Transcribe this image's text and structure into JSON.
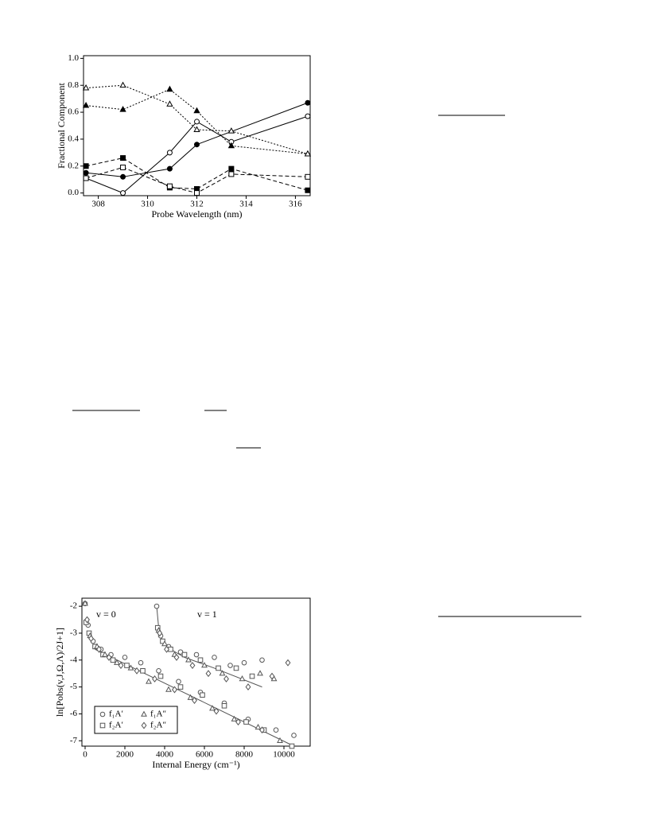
{
  "chart_data": [
    {
      "type": "line",
      "xlabel": "Probe Wavelength (nm)",
      "ylabel": "Fractional Component",
      "x": [
        307.5,
        309.0,
        310.9,
        312.0,
        313.4,
        316.5
      ],
      "xlim": [
        307.4,
        316.6
      ],
      "xticks": [
        308,
        310,
        312,
        314,
        316
      ],
      "ylim": [
        -0.02,
        1.02
      ],
      "yticks": [
        {
          "value": 0,
          "label": "0.0"
        },
        0.2,
        0.4,
        0.6,
        0.8,
        {
          "value": 1,
          "label": "1.0"
        }
      ],
      "series": [
        {
          "marker": "circle",
          "filled": true,
          "linestyle": "solid",
          "color": "#000000",
          "values": [
            0.15,
            0.12,
            0.18,
            0.36,
            null,
            0.67
          ]
        },
        {
          "marker": "circle",
          "filled": false,
          "linestyle": "solid",
          "color": "#000000",
          "values": [
            0.11,
            0.0,
            0.3,
            0.53,
            0.38,
            0.57
          ]
        },
        {
          "marker": "triangle",
          "filled": true,
          "linestyle": "dotted",
          "color": "#000000",
          "values": [
            0.65,
            0.62,
            0.77,
            0.61,
            0.35,
            0.29
          ]
        },
        {
          "marker": "triangle",
          "filled": false,
          "linestyle": "dotted",
          "color": "#000000",
          "values": [
            0.78,
            0.8,
            0.66,
            0.47,
            0.46,
            0.29
          ]
        },
        {
          "marker": "square",
          "filled": true,
          "linestyle": "dashed",
          "color": "#000000",
          "values": [
            0.2,
            0.26,
            0.04,
            0.03,
            0.18,
            0.02
          ]
        },
        {
          "marker": "square",
          "filled": false,
          "linestyle": "dashed",
          "color": "#000000",
          "values": [
            0.11,
            0.19,
            0.05,
            0.0,
            0.14,
            0.12
          ]
        }
      ]
    },
    {
      "type": "scatter",
      "xlabel": "Internal Energy (cm⁻¹)",
      "ylabel": "ln[Pobs(v,J,Ω,Λ)/2J+1]",
      "annotations": [
        "v = 0",
        "v = 1"
      ],
      "xlim": [
        -160,
        11320
      ],
      "xticks": [
        0,
        2000,
        4000,
        6000,
        8000,
        10000
      ],
      "ylim": [
        -7.2,
        -1.7
      ],
      "yticks": [
        -2,
        -3,
        -4,
        -5,
        -6,
        -7
      ],
      "legend": "lower-left",
      "series": [
        {
          "name": "f₁A′",
          "marker": "circle",
          "color": "#555555",
          "x": [
            0,
            150,
            400,
            800,
            1300,
            2000,
            2800,
            3700,
            4700,
            5800,
            7000,
            8200,
            9600,
            10500,
            3600,
            3800,
            4200,
            4800,
            5600,
            6500,
            7300,
            8000,
            8900
          ],
          "y": [
            -1.9,
            -2.7,
            -3.3,
            -3.6,
            -3.8,
            -3.9,
            -4.1,
            -4.4,
            -4.8,
            -5.2,
            -5.6,
            -6.2,
            -6.6,
            -6.8,
            -2.0,
            -3.1,
            -3.5,
            -3.7,
            -3.8,
            -3.9,
            -4.2,
            -4.1,
            -4.0
          ]
        },
        {
          "name": "f₂A′",
          "marker": "square",
          "color": "#555555",
          "x": [
            50,
            200,
            500,
            900,
            1400,
            2100,
            2900,
            3800,
            4800,
            5900,
            7000,
            8100,
            9000,
            10400,
            3650,
            3900,
            4300,
            5000,
            5800,
            6700,
            7600,
            8400
          ],
          "y": [
            -2.6,
            -3.0,
            -3.5,
            -3.8,
            -4.0,
            -4.2,
            -4.4,
            -4.6,
            -5.0,
            -5.3,
            -5.7,
            -6.3,
            -6.6,
            -7.2,
            -2.8,
            -3.3,
            -3.6,
            -3.8,
            -4.0,
            -4.3,
            -4.3,
            -4.6
          ]
        },
        {
          "name": "f₁A″",
          "marker": "triangle",
          "color": "#555555",
          "x": [
            0,
            250,
            600,
            1000,
            1600,
            2300,
            3200,
            4200,
            5300,
            6400,
            7500,
            8700,
            9800,
            3700,
            4000,
            4500,
            5200,
            6000,
            6900,
            7900,
            8800,
            9500
          ],
          "y": [
            -1.9,
            -3.1,
            -3.5,
            -3.8,
            -4.1,
            -4.3,
            -4.8,
            -5.1,
            -5.4,
            -5.8,
            -6.2,
            -6.5,
            -7.0,
            -2.9,
            -3.4,
            -3.8,
            -4.0,
            -4.2,
            -4.5,
            -4.7,
            -4.5,
            -4.7
          ]
        },
        {
          "name": "f₂A″",
          "marker": "diamond",
          "color": "#555555",
          "x": [
            100,
            300,
            700,
            1200,
            1800,
            2600,
            3500,
            4500,
            5500,
            6600,
            7700,
            8900,
            3750,
            4100,
            4600,
            5400,
            6200,
            7100,
            8200,
            9400,
            10200
          ],
          "y": [
            -2.5,
            -3.2,
            -3.6,
            -3.9,
            -4.2,
            -4.4,
            -4.7,
            -5.1,
            -5.5,
            -5.9,
            -6.3,
            -6.6,
            -3.0,
            -3.6,
            -3.9,
            -4.2,
            -4.5,
            -4.7,
            -5.0,
            -4.6,
            -4.1
          ]
        }
      ],
      "fits": [
        {
          "x": [
            500,
            10500
          ],
          "y": [
            -3.6,
            -7.2
          ]
        },
        {
          "x": [
            3600,
            3700,
            3900,
            4300,
            5000,
            6500,
            8900
          ],
          "y": [
            -2.0,
            -2.8,
            -3.3,
            -3.6,
            -3.9,
            -4.3,
            -5.0
          ]
        }
      ]
    }
  ]
}
